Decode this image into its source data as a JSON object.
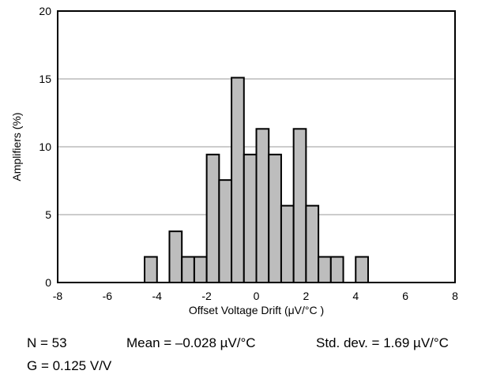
{
  "chart_data": {
    "type": "bar",
    "xlabel": "Offset Voltage Drift (μV/°C )",
    "ylabel": "Amplifiers (%)",
    "xlim": [
      -8,
      8
    ],
    "ylim": [
      0,
      20
    ],
    "xticks": [
      "-8",
      "-6",
      "-4",
      "-2",
      "0",
      "2",
      "4",
      "6",
      "8"
    ],
    "yticks": [
      "0",
      "5",
      "10",
      "15",
      "20"
    ],
    "grid": "horizontal",
    "bin_width": 0.5,
    "bins": [
      {
        "x0": -4.5,
        "value": 1.89
      },
      {
        "x0": -3.5,
        "value": 3.77
      },
      {
        "x0": -3.0,
        "value": 1.89
      },
      {
        "x0": -2.5,
        "value": 1.89
      },
      {
        "x0": -2.0,
        "value": 9.43
      },
      {
        "x0": -1.5,
        "value": 7.55
      },
      {
        "x0": -1.0,
        "value": 15.09
      },
      {
        "x0": -0.5,
        "value": 9.43
      },
      {
        "x0": 0.0,
        "value": 11.32
      },
      {
        "x0": 0.5,
        "value": 9.43
      },
      {
        "x0": 1.0,
        "value": 5.66
      },
      {
        "x0": 1.5,
        "value": 11.32
      },
      {
        "x0": 2.0,
        "value": 5.66
      },
      {
        "x0": 2.5,
        "value": 1.89
      },
      {
        "x0": 3.0,
        "value": 1.89
      },
      {
        "x0": 4.0,
        "value": 1.89
      }
    ],
    "bar_color": "#bdbdbd"
  },
  "stats": {
    "n": "N = 53",
    "mean": "Mean = –0.028 µV/°C",
    "std": "Std. dev. = 1.69 µV/°C",
    "gain": "G = 0.125 V/V"
  }
}
